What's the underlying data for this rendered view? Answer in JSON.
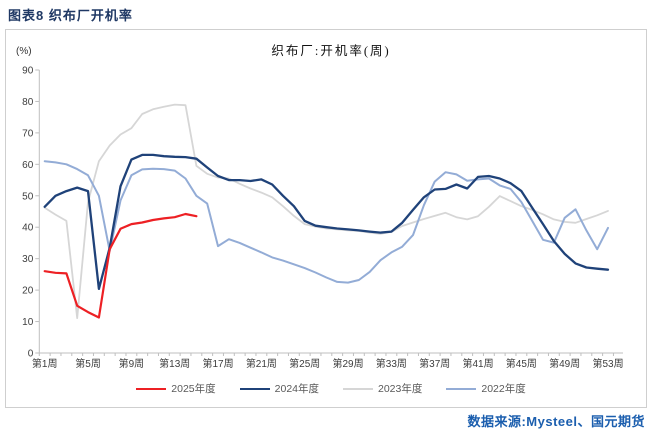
{
  "page": {
    "header_title": "图表8 织布厂开机率",
    "source_note": "数据来源:Mysteel、国元期货"
  },
  "chart_data": {
    "type": "line",
    "title": "织布厂:开机率(周)",
    "y_unit_label": "(%)",
    "ylim": [
      0,
      90
    ],
    "y_ticks": [
      0,
      10,
      20,
      30,
      40,
      50,
      60,
      70,
      80,
      90
    ],
    "weeks_total": 53,
    "grid": false,
    "legend_position": "bottom",
    "x_ticks": [
      {
        "week": 1,
        "label": "第1周"
      },
      {
        "week": 5,
        "label": "第5周"
      },
      {
        "week": 9,
        "label": "第9周"
      },
      {
        "week": 13,
        "label": "第13周"
      },
      {
        "week": 17,
        "label": "第17周"
      },
      {
        "week": 21,
        "label": "第21周"
      },
      {
        "week": 25,
        "label": "第25周"
      },
      {
        "week": 29,
        "label": "第29周"
      },
      {
        "week": 33,
        "label": "第33周"
      },
      {
        "week": 37,
        "label": "第37周"
      },
      {
        "week": 41,
        "label": "第41周"
      },
      {
        "week": 45,
        "label": "第45周"
      },
      {
        "week": 49,
        "label": "第49周"
      },
      {
        "week": 53,
        "label": "第53周"
      }
    ],
    "series": [
      {
        "name": "2023年度",
        "color": "#D6D6D6",
        "width": 1.8,
        "start_week": 1,
        "values": [
          46.2,
          44,
          42,
          11.1,
          48,
          61,
          66,
          69.5,
          71.5,
          76,
          77.5,
          78.3,
          79,
          78.8,
          59.5,
          57,
          55.8,
          55.5,
          53.8,
          52.3,
          51,
          49.5,
          46.7,
          43.6,
          41,
          40.2,
          39.6,
          39.3,
          39,
          38.8,
          38.3,
          37.9,
          38.5,
          40.4,
          41.5,
          42.6,
          43.6,
          44.6,
          43.2,
          42.5,
          43.5,
          46.5,
          49.9,
          48.3,
          46.7,
          45.5,
          44.1,
          42.5,
          41.7,
          41.4,
          42.6,
          43.8,
          45.2
        ]
      },
      {
        "name": "2022年度",
        "color": "#93ACD6",
        "width": 2,
        "start_week": 1,
        "values": [
          61,
          60.6,
          60,
          58.5,
          56.5,
          50,
          32.4,
          48.5,
          56.5,
          58.4,
          58.6,
          58.5,
          58,
          55.5,
          50,
          47.5,
          34,
          36.2,
          35,
          33.5,
          32,
          30.4,
          29.4,
          28.2,
          27,
          25.6,
          24,
          22.6,
          22.4,
          23.2,
          25.8,
          29.5,
          32,
          33.8,
          37.5,
          47,
          54.5,
          57.5,
          56.8,
          54.8,
          55.2,
          55.5,
          53.3,
          52.2,
          48,
          42,
          36,
          35.1,
          43,
          45.7,
          39,
          33,
          39.8
        ]
      },
      {
        "name": "2024年度",
        "color": "#1F4279",
        "width": 2.3,
        "start_week": 1,
        "values": [
          46.5,
          50,
          51.5,
          52.6,
          51.5,
          20.4,
          33.5,
          53,
          61.5,
          63,
          63,
          62.6,
          62.4,
          62.3,
          61.8,
          59,
          56.3,
          55,
          55,
          54.7,
          55.2,
          53.6,
          50,
          46.7,
          42,
          40.5,
          40,
          39.6,
          39.3,
          39,
          38.6,
          38.3,
          38.6,
          41.4,
          45.5,
          49.5,
          52,
          52.2,
          53.6,
          52.3,
          56,
          56.3,
          55.5,
          54,
          51.5,
          46.2,
          41,
          35.6,
          31.5,
          28.5,
          27.2,
          26.8,
          26.5
        ]
      },
      {
        "name": "2025年度",
        "color": "#ED2024",
        "width": 2.2,
        "start_week": 1,
        "values": [
          26,
          25.5,
          25.3,
          15,
          13,
          11.3,
          33,
          39.5,
          41,
          41.5,
          42.3,
          42.8,
          43.2,
          44.2,
          43.5
        ]
      }
    ],
    "legend_order": [
      "2025年度",
      "2024年度",
      "2023年度",
      "2022年度"
    ]
  }
}
